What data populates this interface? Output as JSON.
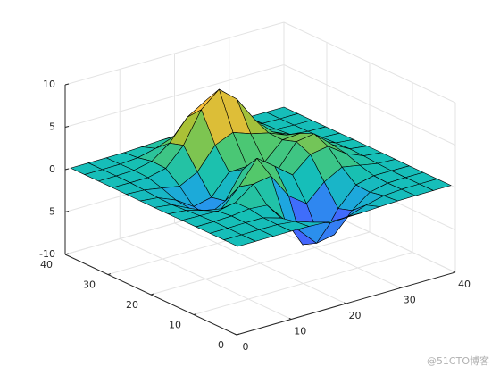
{
  "chart_data": {
    "type": "surface",
    "x": [
      1,
      4.25,
      7.5,
      10.75,
      14,
      17.25,
      20.5,
      23.75,
      27,
      30.25,
      33.5,
      36.75,
      40
    ],
    "y": [
      1,
      4.25,
      7.5,
      10.75,
      14,
      17.25,
      20.5,
      23.75,
      27,
      30.25,
      33.5,
      36.75,
      40
    ],
    "z": [
      [
        0,
        0,
        0,
        0,
        -0.03,
        -0.14,
        -0.24,
        -0.22,
        -0.11,
        -0.03,
        -0.01,
        0,
        0
      ],
      [
        0,
        0,
        0.01,
        0,
        -0.23,
        -0.91,
        -1.57,
        -1.41,
        -0.69,
        -0.18,
        -0.03,
        0,
        0
      ],
      [
        0,
        0.01,
        0.05,
        0.05,
        -0.59,
        -2.63,
        -4.75,
        -4.34,
        -2.1,
        -0.53,
        -0.06,
        0,
        0
      ],
      [
        0,
        0.01,
        0.08,
        0.33,
        0.15,
        -2.19,
        -5.68,
        -5.76,
        -2.63,
        -0.44,
        0.04,
        0.03,
        0
      ],
      [
        -0.01,
        -0.06,
        -0.13,
        0.3,
        1.86,
        2.22,
        -0.72,
        -2.22,
        -0.27,
        0.88,
        0.5,
        0.11,
        0.01
      ],
      [
        -0.03,
        -0.2,
        -0.8,
        -1.21,
        0.8,
        3.55,
        2.0,
        0.39,
        2.2,
        2.56,
        1.12,
        0.24,
        0.03
      ],
      [
        -0.04,
        -0.3,
        -1.33,
        -2.77,
        -1.65,
        1.48,
        0.98,
        0.37,
        2.94,
        3.27,
        1.41,
        0.3,
        0.03
      ],
      [
        -0.03,
        -0.25,
        -1.12,
        -2.49,
        -2.0,
        0.39,
        0.46,
        0.38,
        2.38,
        2.56,
        1.09,
        0.23,
        0.03
      ],
      [
        -0.01,
        -0.11,
        -0.48,
        -0.86,
        0.23,
        2.79,
        3.69,
        2.93,
        2.43,
        1.58,
        0.58,
        0.11,
        0.01
      ],
      [
        0,
        -0.02,
        -0.01,
        0.48,
        2.61,
        6.2,
        8.0,
        6.25,
        3.25,
        1.19,
        0.29,
        0.05,
        0
      ],
      [
        0,
        0.01,
        0.08,
        0.55,
        2.09,
        4.55,
        5.85,
        4.56,
        2.21,
        0.68,
        0.13,
        0.02,
        0
      ],
      [
        0,
        0,
        0.03,
        0.19,
        0.69,
        1.47,
        1.88,
        1.47,
        0.7,
        0.2,
        0.04,
        0,
        0
      ],
      [
        0,
        0,
        0.01,
        0.03,
        0.11,
        0.23,
        0.3,
        0.23,
        0.11,
        0.03,
        0.01,
        0,
        0
      ]
    ],
    "xlim": [
      0,
      40
    ],
    "ylim": [
      0,
      40
    ],
    "zlim": [
      -10,
      10
    ],
    "xticks": [
      0,
      10,
      20,
      30,
      40
    ],
    "yticks": [
      0,
      10,
      20,
      30,
      40
    ],
    "zticks": [
      -10,
      -5,
      0,
      5,
      10
    ],
    "grid": true,
    "colormap": [
      "#3e26a8",
      "#4367fd",
      "#1fa2e6",
      "#15c0b6",
      "#53c86b",
      "#b4c030",
      "#fcbd3d",
      "#f9fb15"
    ],
    "edge_color": "#000000"
  },
  "watermark": "@51CTO博客"
}
